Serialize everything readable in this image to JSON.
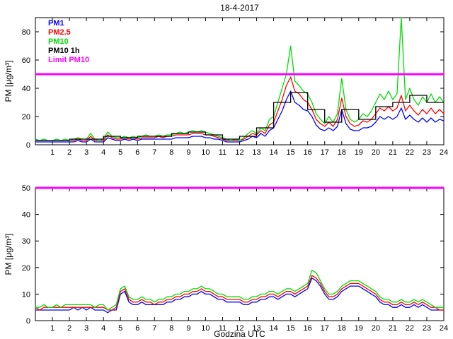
{
  "title": "18-4-2017",
  "xlabel": "Godzina UTC",
  "legend": [
    {
      "label": "PM1",
      "color": "#0000ff"
    },
    {
      "label": "PM2.5",
      "color": "#ff0000"
    },
    {
      "label": "PM10",
      "color": "#00dd00"
    },
    {
      "label": "PM10 1h",
      "color": "#000000"
    },
    {
      "label": "Limit PM10",
      "color": "#ff00ff"
    }
  ],
  "chart_data": [
    {
      "type": "line",
      "panel": "top",
      "ylabel": "PM [μg/m³]",
      "xlim": [
        0,
        24
      ],
      "ylim": [
        0,
        90
      ],
      "xticks": [
        1,
        2,
        3,
        4,
        5,
        6,
        7,
        8,
        9,
        10,
        11,
        12,
        13,
        14,
        15,
        16,
        17,
        18,
        19,
        20,
        21,
        22,
        23,
        24
      ],
      "yticks": [
        0,
        20,
        40,
        60,
        80
      ],
      "x_step": 0.25,
      "series": [
        {
          "name": "PM1",
          "color": "#0000ff",
          "type": "line",
          "values": [
            2,
            2,
            2,
            2,
            2,
            2,
            2,
            2,
            2,
            2,
            3,
            2,
            2,
            4,
            2,
            2,
            2,
            5,
            4,
            3,
            3,
            4,
            3,
            4,
            3,
            4,
            4,
            4,
            4,
            4,
            4,
            4,
            4,
            5,
            5,
            5,
            5,
            6,
            6,
            6,
            5,
            5,
            4,
            4,
            3,
            2,
            2,
            2,
            2,
            3,
            4,
            6,
            5,
            8,
            6,
            10,
            12,
            18,
            24,
            32,
            38,
            30,
            28,
            25,
            24,
            20,
            14,
            11,
            10,
            12,
            10,
            13,
            25,
            15,
            11,
            10,
            10,
            12,
            12,
            13,
            16,
            20,
            18,
            20,
            18,
            20,
            26,
            18,
            21,
            18,
            16,
            19,
            16,
            19,
            16,
            18,
            17
          ]
        },
        {
          "name": "PM2.5",
          "color": "#ff0000",
          "type": "line",
          "values": [
            3,
            3,
            3,
            3,
            3,
            3,
            3,
            3,
            3,
            3,
            4,
            3,
            3,
            6,
            3,
            3,
            3,
            7,
            5,
            4,
            4,
            5,
            4,
            5,
            4,
            5,
            5,
            5,
            5,
            6,
            5,
            6,
            6,
            7,
            7,
            7,
            7,
            8,
            8,
            8,
            7,
            7,
            6,
            5,
            4,
            3,
            3,
            3,
            3,
            4,
            6,
            8,
            7,
            10,
            8,
            14,
            16,
            24,
            32,
            42,
            48,
            38,
            36,
            32,
            30,
            25,
            18,
            15,
            13,
            16,
            13,
            18,
            33,
            20,
            15,
            13,
            14,
            17,
            16,
            18,
            22,
            26,
            24,
            27,
            24,
            26,
            35,
            24,
            28,
            24,
            21,
            25,
            22,
            26,
            22,
            25,
            22
          ]
        },
        {
          "name": "PM10",
          "color": "#00dd00",
          "type": "line",
          "values": [
            4,
            3,
            4,
            3,
            3,
            4,
            3,
            4,
            3,
            4,
            5,
            4,
            4,
            8,
            4,
            3,
            4,
            9,
            6,
            5,
            5,
            6,
            5,
            6,
            5,
            6,
            7,
            6,
            6,
            7,
            6,
            7,
            7,
            8,
            9,
            8,
            9,
            10,
            9,
            10,
            9,
            8,
            7,
            6,
            5,
            4,
            3,
            4,
            3,
            5,
            8,
            10,
            8,
            12,
            10,
            18,
            20,
            30,
            40,
            50,
            70,
            45,
            42,
            38,
            36,
            30,
            22,
            18,
            15,
            20,
            16,
            22,
            47,
            25,
            18,
            16,
            18,
            22,
            20,
            24,
            30,
            36,
            32,
            38,
            32,
            36,
            90,
            32,
            40,
            32,
            28,
            34,
            30,
            36,
            30,
            34,
            30
          ]
        },
        {
          "name": "PM10 1h",
          "color": "#000000",
          "type": "step",
          "values": [
            3,
            3,
            4,
            4,
            6,
            5,
            6,
            6,
            8,
            9,
            7,
            4,
            6,
            12,
            30,
            37,
            25,
            16,
            25,
            18,
            27,
            30,
            35,
            30
          ]
        },
        {
          "name": "Limit PM10",
          "color": "#ff00ff",
          "type": "hline",
          "value": 50
        }
      ]
    },
    {
      "type": "line",
      "panel": "bottom",
      "ylabel": "PM [μg/m³]",
      "xlim": [
        0,
        24
      ],
      "ylim": [
        0,
        50
      ],
      "xticks": [
        1,
        2,
        3,
        4,
        5,
        6,
        7,
        8,
        9,
        10,
        11,
        12,
        13,
        14,
        15,
        16,
        17,
        18,
        19,
        20,
        21,
        22,
        23,
        24
      ],
      "yticks": [
        0,
        10,
        20,
        30,
        40,
        50
      ],
      "x_step": 0.25,
      "series": [
        {
          "name": "PM1",
          "color": "#0000ff",
          "type": "line",
          "values": [
            4,
            4,
            4,
            4,
            4,
            4,
            4,
            4,
            4,
            5,
            4,
            5,
            4,
            5,
            4,
            4,
            4,
            3,
            4,
            4,
            10,
            11,
            7,
            6,
            6,
            7,
            6,
            6,
            6,
            6,
            6,
            7,
            7,
            8,
            8,
            9,
            9,
            10,
            10,
            11,
            10,
            10,
            9,
            8,
            8,
            7,
            7,
            7,
            7,
            6,
            6,
            7,
            7,
            8,
            8,
            9,
            9,
            8,
            9,
            10,
            10,
            9,
            10,
            11,
            12,
            16,
            15,
            13,
            10,
            8,
            8,
            9,
            11,
            12,
            13,
            13,
            13,
            12,
            11,
            10,
            9,
            7,
            6,
            6,
            5,
            5,
            6,
            5,
            5,
            6,
            5,
            6,
            5,
            4,
            4,
            4,
            4
          ]
        },
        {
          "name": "PM2.5",
          "color": "#ff0000",
          "type": "line",
          "values": [
            5,
            4,
            5,
            5,
            5,
            5,
            5,
            5,
            5,
            5,
            5,
            5,
            5,
            5,
            5,
            5,
            5,
            4,
            4,
            5,
            11,
            12,
            8,
            7,
            7,
            8,
            7,
            7,
            6,
            7,
            7,
            8,
            8,
            9,
            9,
            10,
            10,
            11,
            11,
            12,
            11,
            11,
            10,
            9,
            9,
            8,
            8,
            8,
            8,
            7,
            7,
            8,
            8,
            9,
            9,
            10,
            10,
            9,
            10,
            11,
            11,
            10,
            11,
            12,
            13,
            17,
            16,
            14,
            11,
            9,
            9,
            10,
            12,
            13,
            14,
            14,
            14,
            13,
            12,
            11,
            10,
            8,
            7,
            7,
            6,
            6,
            7,
            6,
            6,
            7,
            6,
            7,
            6,
            5,
            5,
            4,
            4
          ]
        },
        {
          "name": "PM10",
          "color": "#00dd00",
          "type": "line",
          "values": [
            5,
            5,
            6,
            5,
            5,
            6,
            5,
            6,
            6,
            6,
            6,
            6,
            6,
            6,
            5,
            6,
            6,
            4,
            5,
            6,
            12,
            13,
            9,
            8,
            8,
            9,
            8,
            8,
            7,
            8,
            8,
            9,
            9,
            10,
            10,
            11,
            11,
            12,
            12,
            13,
            12,
            12,
            11,
            10,
            10,
            9,
            9,
            9,
            9,
            8,
            8,
            9,
            9,
            10,
            10,
            11,
            11,
            10,
            11,
            12,
            12,
            11,
            12,
            13,
            14,
            19,
            18,
            15,
            12,
            10,
            10,
            11,
            13,
            14,
            15,
            15,
            15,
            14,
            13,
            12,
            11,
            9,
            8,
            8,
            7,
            7,
            8,
            7,
            7,
            8,
            7,
            8,
            7,
            6,
            5,
            5,
            5
          ]
        },
        {
          "name": "Limit PM10",
          "color": "#ff00ff",
          "type": "hline",
          "value": 50
        }
      ]
    }
  ]
}
